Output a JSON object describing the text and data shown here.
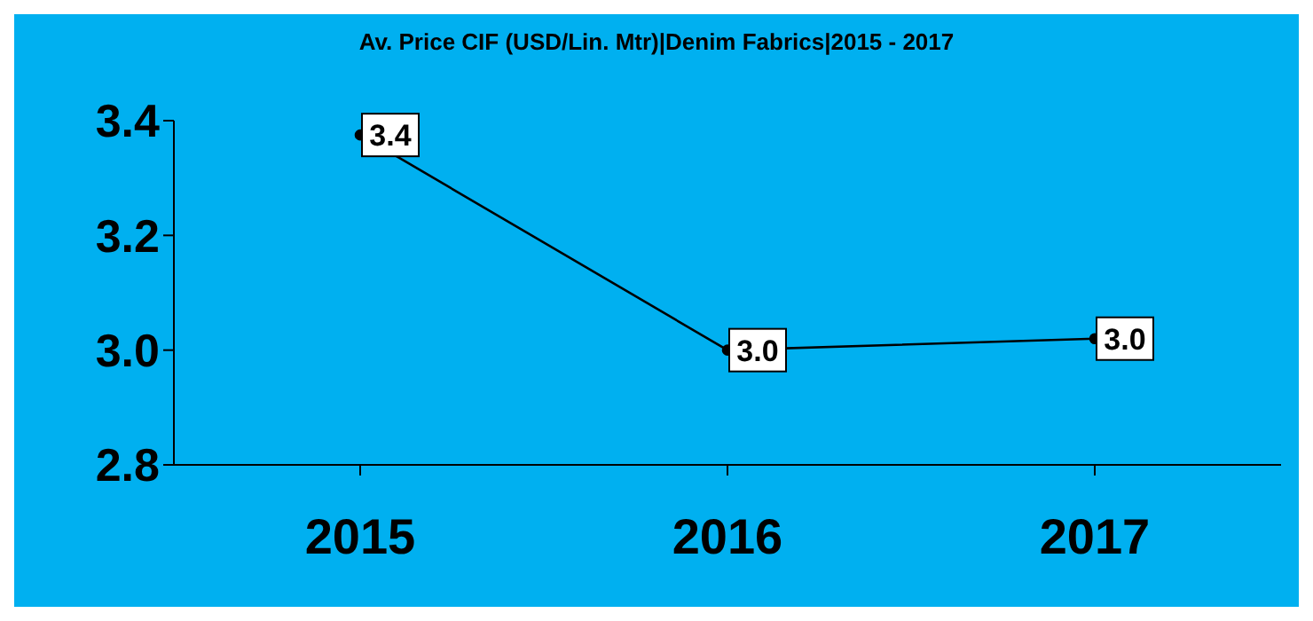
{
  "chart_data": {
    "type": "line",
    "title": "Av. Price CIF (USD/Lin. Mtr)|Denim Fabrics|2015 - 2017",
    "categories": [
      "2015",
      "2016",
      "2017"
    ],
    "series": [
      {
        "color": "#000000",
        "values": [
          3.375,
          3.0,
          3.02
        ],
        "value_labels": [
          "3.4",
          "3.0",
          "3.0"
        ]
      }
    ],
    "ylim": [
      2.8,
      3.4
    ],
    "yticks": [
      {
        "value": 2.8,
        "label": "2.8"
      },
      {
        "value": 3.0,
        "label": "3.0"
      },
      {
        "value": 3.2,
        "label": "3.2"
      },
      {
        "value": 3.4,
        "label": "3.4"
      }
    ],
    "grid": false,
    "legend": false,
    "marker": "circle",
    "line_style": "solid"
  }
}
